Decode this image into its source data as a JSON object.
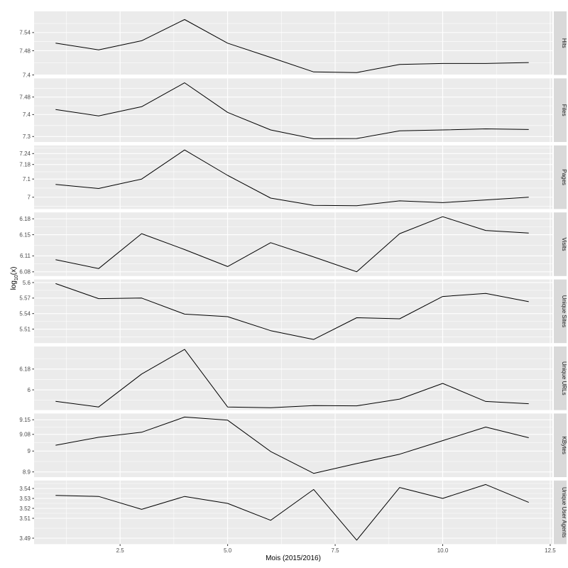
{
  "figure": {
    "xlabel": "Mois (2015/2016)",
    "ylabel_pre": "log",
    "ylabel_sub": "10",
    "ylabel_post": "(x)"
  },
  "colors": {
    "background": "#FFFFFF",
    "panel_bg": "#EBEBEB",
    "grid": "#FFFFFF",
    "strip_bg": "#D9D9D9",
    "strip_text": "#1A1A1A",
    "axis_text": "#4D4D4D",
    "tick_mark": "#333333",
    "line": "#000000"
  },
  "chart_data": {
    "type": "line",
    "title": "",
    "xlabel": "Mois (2015/2016)",
    "ylabel": "log10(x)",
    "legend": "none",
    "grid": "on",
    "x": [
      1,
      2,
      3,
      4,
      5,
      6,
      7,
      8,
      9,
      10,
      11,
      12
    ],
    "xlim": [
      0.5,
      12.55
    ],
    "x_ticks": [
      2.5,
      5.0,
      7.5,
      10.0,
      12.5
    ],
    "x_tick_labels": [
      "2.5",
      "5.0",
      "7.5",
      "10.0",
      "12.5"
    ],
    "x_minor": [
      1.25,
      3.75,
      6.25,
      8.75,
      11.25
    ],
    "facets": [
      {
        "label": "Hits",
        "ylim": [
          7.4,
          7.61
        ],
        "y_ticks": [
          7.4,
          7.48,
          7.54
        ],
        "y_tick_labels": [
          "7.4",
          "7.48",
          "7.54"
        ],
        "values": [
          7.505,
          7.483,
          7.513,
          7.583,
          7.505,
          7.458,
          7.41,
          7.408,
          7.435,
          7.438,
          7.438,
          7.441
        ]
      },
      {
        "label": "Files",
        "ylim": [
          7.275,
          7.565
        ],
        "y_ticks": [
          7.3,
          7.4,
          7.48
        ],
        "y_tick_labels": [
          "7.3",
          "7.4",
          "7.48"
        ],
        "values": [
          7.423,
          7.394,
          7.436,
          7.545,
          7.41,
          7.33,
          7.29,
          7.291,
          7.326,
          7.33,
          7.335,
          7.332
        ]
      },
      {
        "label": "Pages",
        "ylim": [
          6.935,
          7.285
        ],
        "y_ticks": [
          7.0,
          7.1,
          7.18,
          7.24
        ],
        "y_tick_labels": [
          "7",
          "7.1",
          "7.18",
          "7.24"
        ],
        "values": [
          7.07,
          7.048,
          7.1,
          7.26,
          7.12,
          6.995,
          6.955,
          6.953,
          6.98,
          6.97,
          6.985,
          7.0
        ]
      },
      {
        "label": "Visits",
        "ylim": [
          6.072,
          6.192
        ],
        "y_ticks": [
          6.08,
          6.11,
          6.15,
          6.18
        ],
        "y_tick_labels": [
          "6.08",
          "6.11",
          "6.15",
          "6.18"
        ],
        "values": [
          6.103,
          6.086,
          6.152,
          6.122,
          6.09,
          6.135,
          6.108,
          6.08,
          6.152,
          6.184,
          6.158,
          6.153
        ]
      },
      {
        "label": "Unique Sites",
        "ylim": [
          5.483,
          5.606
        ],
        "y_ticks": [
          5.51,
          5.54,
          5.57,
          5.6
        ],
        "y_tick_labels": [
          "5.51",
          "5.54",
          "5.57",
          "5.6"
        ],
        "values": [
          5.598,
          5.569,
          5.57,
          5.539,
          5.534,
          5.507,
          5.49,
          5.532,
          5.53,
          5.573,
          5.579,
          5.563
        ]
      },
      {
        "label": "Unique URLs",
        "ylim": [
          5.825,
          6.375
        ],
        "y_ticks": [
          6.0,
          6.18
        ],
        "y_tick_labels": [
          "6",
          "6.18"
        ],
        "values": [
          5.901,
          5.852,
          6.137,
          6.35,
          5.852,
          5.846,
          5.864,
          5.862,
          5.92,
          6.056,
          5.9,
          5.88
        ]
      },
      {
        "label": "KBytes",
        "ylim": [
          8.875,
          9.18
        ],
        "y_ticks": [
          8.9,
          9.0,
          9.08,
          9.15
        ],
        "y_tick_labels": [
          "8.9",
          "9",
          "9.08",
          "9.15"
        ],
        "values": [
          9.028,
          9.066,
          9.09,
          9.163,
          9.148,
          8.998,
          8.893,
          8.94,
          8.985,
          9.05,
          9.115,
          9.064
        ]
      },
      {
        "label": "Unique User Agents",
        "ylim": [
          3.484,
          3.548
        ],
        "y_ticks": [
          3.49,
          3.51,
          3.52,
          3.53,
          3.54
        ],
        "y_tick_labels": [
          "3.49",
          "3.51",
          "3.52",
          "3.53",
          "3.54"
        ],
        "values": [
          3.533,
          3.532,
          3.519,
          3.532,
          3.525,
          3.508,
          3.539,
          3.488,
          3.541,
          3.53,
          3.544,
          3.526
        ]
      }
    ]
  }
}
